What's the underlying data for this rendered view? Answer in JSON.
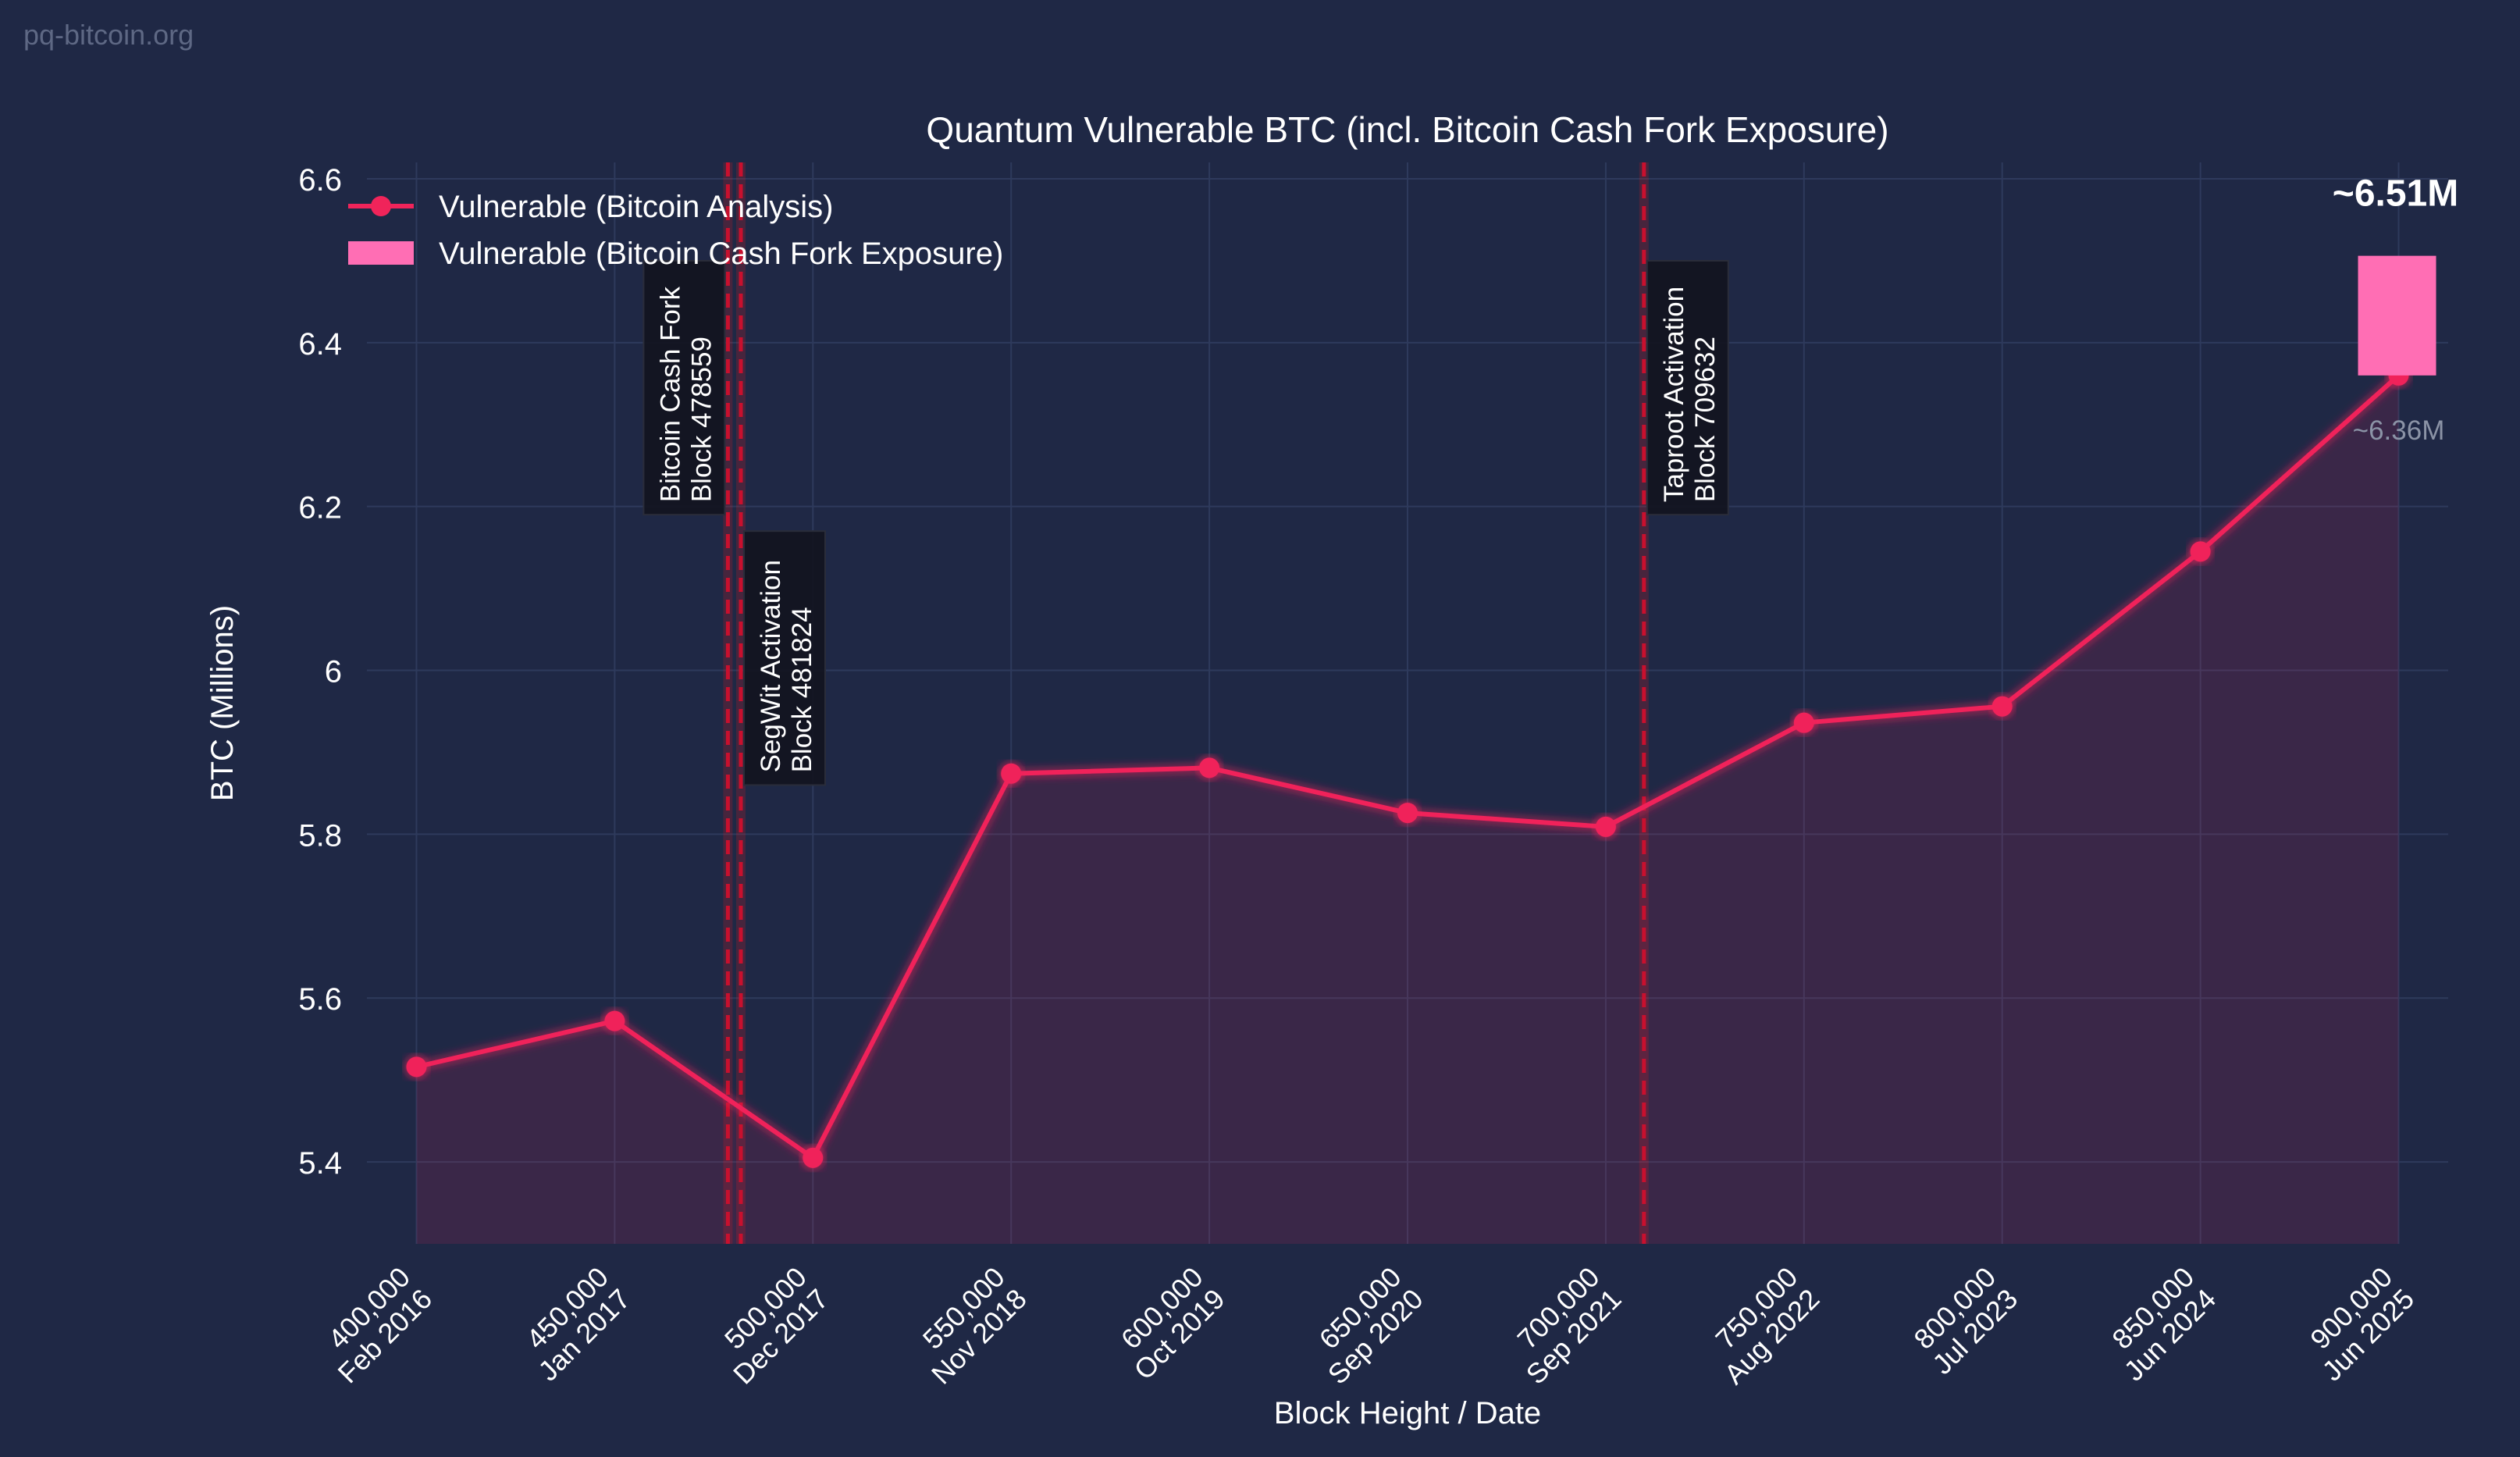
{
  "watermark": "pq-bitcoin.org",
  "chart_data": {
    "type": "line",
    "title": "Quantum Vulnerable BTC (incl. Bitcoin Cash Fork Exposure)",
    "xlabel": "Block Height / Date",
    "ylabel": "BTC (Millions)",
    "ylim": [
      5.3,
      6.62
    ],
    "xlim": [
      387500,
      912500
    ],
    "grid": true,
    "yticks": [
      5.4,
      5.6,
      5.8,
      6.0,
      6.2,
      6.4,
      6.6
    ],
    "xticks": [
      {
        "value": 400000,
        "label1": "400,000",
        "label2": "Feb 2016"
      },
      {
        "value": 450000,
        "label1": "450,000",
        "label2": "Jan 2017"
      },
      {
        "value": 500000,
        "label1": "500,000",
        "label2": "Dec 2017"
      },
      {
        "value": 550000,
        "label1": "550,000",
        "label2": "Nov 2018"
      },
      {
        "value": 600000,
        "label1": "600,000",
        "label2": "Oct 2019"
      },
      {
        "value": 650000,
        "label1": "650,000",
        "label2": "Sep 2020"
      },
      {
        "value": 700000,
        "label1": "700,000",
        "label2": "Sep 2021"
      },
      {
        "value": 750000,
        "label1": "750,000",
        "label2": "Aug 2022"
      },
      {
        "value": 800000,
        "label1": "800,000",
        "label2": "Jul 2023"
      },
      {
        "value": 850000,
        "label1": "850,000",
        "label2": "Jun 2024"
      },
      {
        "value": 900000,
        "label1": "900,000",
        "label2": "Jun 2025"
      }
    ],
    "series": [
      {
        "name": "Vulnerable (Bitcoin Analysis)",
        "color": "#f0245a",
        "x": [
          400000,
          450000,
          500000,
          550000,
          600000,
          650000,
          700000,
          750000,
          800000,
          850000,
          900000
        ],
        "y": [
          5.516,
          5.572,
          5.405,
          5.874,
          5.881,
          5.826,
          5.809,
          5.936,
          5.956,
          6.145,
          6.36
        ]
      }
    ],
    "bar": {
      "name": "Vulnerable (Bitcoin Cash Fork Exposure)",
      "color": "#ff6eb4",
      "x": 900000,
      "bottom": 6.36,
      "top": 6.506
    },
    "events": [
      {
        "x": 478559,
        "line1": "Bitcoin Cash Fork",
        "line2": "Block 478559",
        "box_y_top": 6.5,
        "box_y_bottom": 6.19,
        "side": "left"
      },
      {
        "x": 481824,
        "line1": "SegWit Activation",
        "line2": "Block 481824",
        "box_y_top": 6.17,
        "box_y_bottom": 5.86,
        "side": "right"
      },
      {
        "x": 709632,
        "line1": "Taproot Activation",
        "line2": "Block 709632",
        "box_y_top": 6.5,
        "box_y_bottom": 6.19,
        "side": "right"
      }
    ],
    "annotations": [
      {
        "text": "~6.51M",
        "x": 900000,
        "y": 6.506,
        "style": "bold"
      },
      {
        "text": "~6.36M",
        "x": 900000,
        "y": 6.36,
        "style": "muted"
      }
    ],
    "legend_position": "top-left",
    "colors": {
      "background": "#1f2845",
      "grid": "#2e3a5c",
      "text": "#ffffff",
      "event_line": "#c8102e",
      "event_box": "#12141f",
      "muted": "#8b93a6"
    }
  }
}
